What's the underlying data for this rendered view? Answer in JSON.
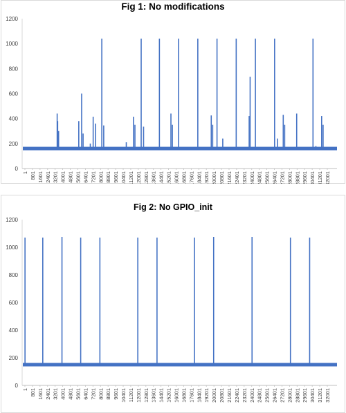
{
  "chart_data": [
    {
      "type": "line",
      "title": "Fig 1: No modifications",
      "xlabel": "",
      "ylabel": "",
      "ylim": [
        0,
        1200
      ],
      "yticks": [
        0,
        200,
        400,
        600,
        800,
        1000,
        1200
      ],
      "xlim": [
        1,
        32800
      ],
      "xtick_labels": [
        "1",
        "801",
        "1601",
        "2401",
        "3201",
        "4001",
        "4801",
        "5601",
        "6401",
        "7201",
        "8001",
        "8801",
        "9601",
        "10401",
        "11201",
        "12001",
        "12801",
        "13601",
        "14401",
        "15201",
        "16001",
        "16801",
        "17601",
        "18401",
        "19201",
        "20001",
        "20801",
        "21601",
        "22401",
        "23201",
        "24001",
        "24801",
        "25601",
        "26401",
        "27201",
        "28001",
        "28801",
        "29601",
        "30401",
        "31201",
        "32001"
      ],
      "baseline": 160,
      "grid": false,
      "legend": "none",
      "color": "#4472c4",
      "spikes": [
        {
          "x": 3650,
          "y": 440
        },
        {
          "x": 3700,
          "y": 380
        },
        {
          "x": 3800,
          "y": 300
        },
        {
          "x": 5900,
          "y": 380
        },
        {
          "x": 6200,
          "y": 600
        },
        {
          "x": 6350,
          "y": 280
        },
        {
          "x": 7100,
          "y": 200
        },
        {
          "x": 7400,
          "y": 415
        },
        {
          "x": 7650,
          "y": 360
        },
        {
          "x": 8300,
          "y": 1040
        },
        {
          "x": 8500,
          "y": 345
        },
        {
          "x": 10850,
          "y": 210
        },
        {
          "x": 11600,
          "y": 415
        },
        {
          "x": 11750,
          "y": 350
        },
        {
          "x": 12400,
          "y": 1040
        },
        {
          "x": 12650,
          "y": 335
        },
        {
          "x": 14300,
          "y": 1040
        },
        {
          "x": 15500,
          "y": 440
        },
        {
          "x": 15650,
          "y": 350
        },
        {
          "x": 16300,
          "y": 1040
        },
        {
          "x": 18300,
          "y": 1040
        },
        {
          "x": 19700,
          "y": 425
        },
        {
          "x": 19850,
          "y": 350
        },
        {
          "x": 20300,
          "y": 1040
        },
        {
          "x": 20900,
          "y": 240
        },
        {
          "x": 22300,
          "y": 1040
        },
        {
          "x": 23650,
          "y": 420
        },
        {
          "x": 23750,
          "y": 735
        },
        {
          "x": 24300,
          "y": 1040
        },
        {
          "x": 26300,
          "y": 1040
        },
        {
          "x": 26600,
          "y": 240
        },
        {
          "x": 27200,
          "y": 430
        },
        {
          "x": 27350,
          "y": 350
        },
        {
          "x": 28600,
          "y": 440
        },
        {
          "x": 30300,
          "y": 1040
        },
        {
          "x": 30600,
          "y": 180
        },
        {
          "x": 31200,
          "y": 420
        },
        {
          "x": 31350,
          "y": 350
        }
      ]
    },
    {
      "type": "line",
      "title": "Fig 2: No GPIO_init",
      "xlabel": "",
      "ylabel": "",
      "ylim": [
        0,
        1200
      ],
      "yticks": [
        0,
        200,
        400,
        600,
        800,
        1000,
        1200
      ],
      "xlim": [
        1,
        32800
      ],
      "xtick_labels": [
        "1",
        "801",
        "1601",
        "2401",
        "3201",
        "4001",
        "4801",
        "5601",
        "6401",
        "7201",
        "8001",
        "8801",
        "9601",
        "10401",
        "11201",
        "12001",
        "12801",
        "13601",
        "14401",
        "15201",
        "16001",
        "16801",
        "17601",
        "18401",
        "19201",
        "20001",
        "20801",
        "21601",
        "22401",
        "23201",
        "24001",
        "24801",
        "25601",
        "26401",
        "27201",
        "28001",
        "28801",
        "29601",
        "30401",
        "31201",
        "32001"
      ],
      "baseline": 150,
      "grid": false,
      "legend": "none",
      "color": "#4472c4",
      "spikes": [
        {
          "x": 300,
          "y": 1070
        },
        {
          "x": 2150,
          "y": 1070
        },
        {
          "x": 4150,
          "y": 1075
        },
        {
          "x": 6100,
          "y": 1070
        },
        {
          "x": 8100,
          "y": 1070
        },
        {
          "x": 12050,
          "y": 1070
        },
        {
          "x": 14050,
          "y": 1070
        },
        {
          "x": 17950,
          "y": 1070
        },
        {
          "x": 19950,
          "y": 1075
        },
        {
          "x": 23950,
          "y": 1075
        },
        {
          "x": 27950,
          "y": 1070
        },
        {
          "x": 29950,
          "y": 1070
        }
      ]
    }
  ]
}
